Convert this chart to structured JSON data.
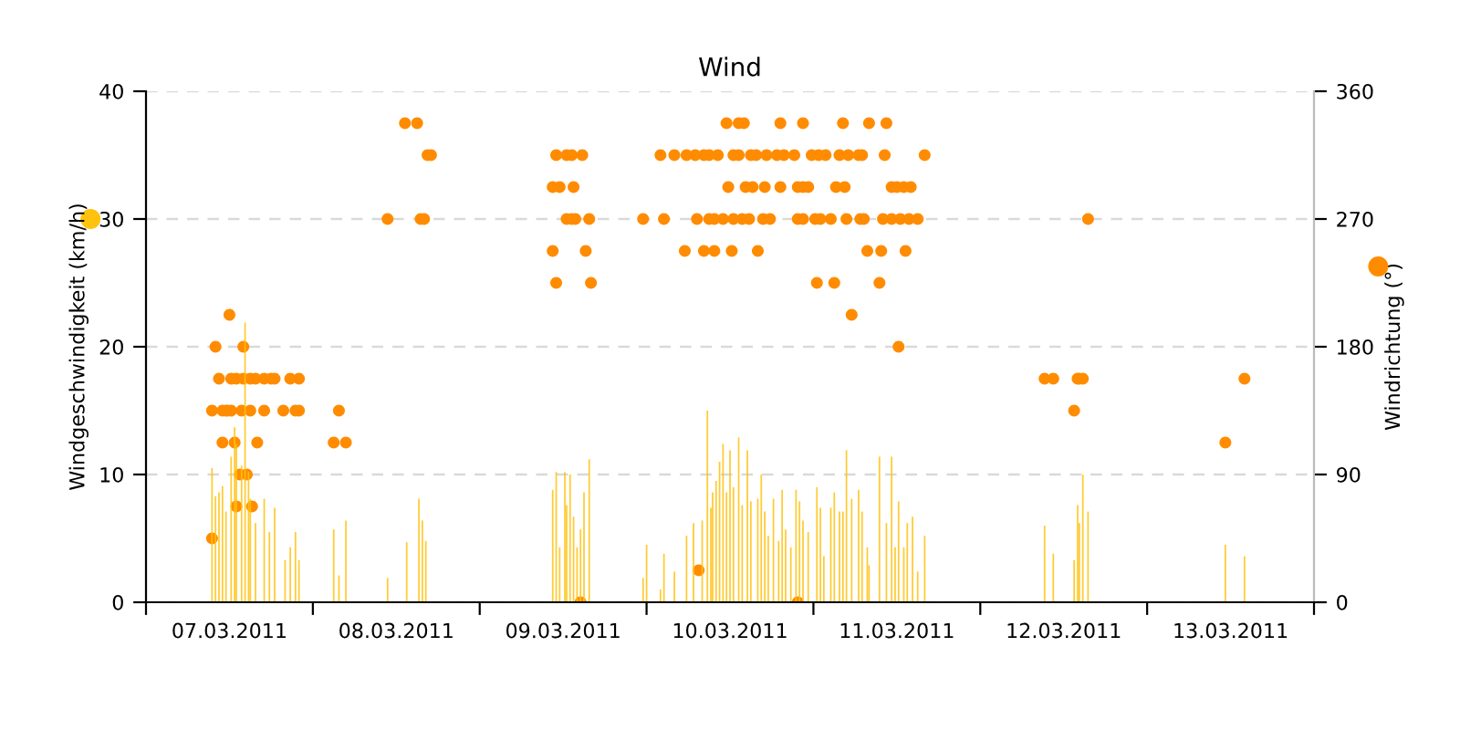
{
  "chart_data": {
    "type": "bar",
    "title": "Wind",
    "ylabel": "Windgeschwindigkeit (km/h)",
    "y2label": "Windrichtung (°)",
    "xlim": [
      "2011-03-07T00:00",
      "2011-03-14T00:00"
    ],
    "xticks": [
      {
        "value": "2011-03-07T00:00",
        "label": null
      },
      {
        "value": "2011-03-07T12:00",
        "label": "07.03.2011"
      },
      {
        "value": "2011-03-08T00:00",
        "label": null
      },
      {
        "value": "2011-03-08T12:00",
        "label": "08.03.2011"
      },
      {
        "value": "2011-03-09T00:00",
        "label": null
      },
      {
        "value": "2011-03-09T12:00",
        "label": "09.03.2011"
      },
      {
        "value": "2011-03-10T00:00",
        "label": null
      },
      {
        "value": "2011-03-10T12:00",
        "label": "10.03.2011"
      },
      {
        "value": "2011-03-11T00:00",
        "label": null
      },
      {
        "value": "2011-03-11T12:00",
        "label": "11.03.2011"
      },
      {
        "value": "2011-03-12T00:00",
        "label": null
      },
      {
        "value": "2011-03-12T12:00",
        "label": "12.03.2011"
      },
      {
        "value": "2011-03-13T00:00",
        "label": null
      },
      {
        "value": "2011-03-13T12:00",
        "label": "13.03.2011"
      },
      {
        "value": "2011-03-14T00:00",
        "label": null
      }
    ],
    "ylim": [
      0,
      40
    ],
    "yticks": [
      0,
      10,
      20,
      30,
      40
    ],
    "y2lim": [
      0,
      360
    ],
    "y2ticks": [
      0,
      90,
      180,
      270,
      360
    ],
    "grid": "y",
    "legend": false,
    "series": [
      {
        "color": "#ffc20e",
        "x": [
          "2011-03-07T09:30",
          "2011-03-07T10:00",
          "2011-03-07T10:30",
          "2011-03-07T11:00",
          "2011-03-07T11:30",
          "2011-03-07T12:15",
          "2011-03-07T12:45",
          "2011-03-07T13:00",
          "2011-03-07T13:45",
          "2011-03-07T14:15",
          "2011-03-07T14:45",
          "2011-03-07T15:00",
          "2011-03-07T15:45",
          "2011-03-07T17:00",
          "2011-03-07T17:45",
          "2011-03-07T18:30",
          "2011-03-07T20:00",
          "2011-03-07T20:45",
          "2011-03-07T21:30",
          "2011-03-07T22:00",
          "2011-03-08T03:00",
          "2011-03-08T03:45",
          "2011-03-08T04:45",
          "2011-03-08T10:45",
          "2011-03-08T13:30",
          "2011-03-08T15:15",
          "2011-03-08T15:45",
          "2011-03-08T16:15",
          "2011-03-09T10:30",
          "2011-03-09T11:00",
          "2011-03-09T11:30",
          "2011-03-09T12:15",
          "2011-03-09T12:30",
          "2011-03-09T13:00",
          "2011-03-09T13:30",
          "2011-03-09T14:00",
          "2011-03-09T14:30",
          "2011-03-09T15:00",
          "2011-03-09T15:45",
          "2011-03-09T23:30",
          "2011-03-10T00:00",
          "2011-03-10T02:00",
          "2011-03-10T02:30",
          "2011-03-10T04:00",
          "2011-03-10T05:45",
          "2011-03-10T06:45",
          "2011-03-10T08:00",
          "2011-03-10T08:45",
          "2011-03-10T09:15",
          "2011-03-10T09:30",
          "2011-03-10T10:00",
          "2011-03-10T10:30",
          "2011-03-10T11:00",
          "2011-03-10T11:30",
          "2011-03-10T12:00",
          "2011-03-10T12:30",
          "2011-03-10T13:15",
          "2011-03-10T13:45",
          "2011-03-10T14:30",
          "2011-03-10T15:00",
          "2011-03-10T16:00",
          "2011-03-10T16:30",
          "2011-03-10T17:00",
          "2011-03-10T17:30",
          "2011-03-10T18:15",
          "2011-03-10T19:00",
          "2011-03-10T19:30",
          "2011-03-10T20:00",
          "2011-03-10T20:45",
          "2011-03-10T21:30",
          "2011-03-10T22:00",
          "2011-03-10T22:30",
          "2011-03-10T23:15",
          "2011-03-11T00:30",
          "2011-03-11T01:00",
          "2011-03-11T01:30",
          "2011-03-11T02:30",
          "2011-03-11T03:00",
          "2011-03-11T03:45",
          "2011-03-11T04:15",
          "2011-03-11T04:45",
          "2011-03-11T05:30",
          "2011-03-11T06:30",
          "2011-03-11T07:00",
          "2011-03-11T07:45",
          "2011-03-11T08:00",
          "2011-03-11T09:30",
          "2011-03-11T10:30",
          "2011-03-11T11:15",
          "2011-03-11T11:45",
          "2011-03-11T12:15",
          "2011-03-11T13:00",
          "2011-03-11T13:30",
          "2011-03-11T14:15",
          "2011-03-11T15:00",
          "2011-03-11T16:00",
          "2011-03-12T09:15",
          "2011-03-12T10:30",
          "2011-03-12T13:30",
          "2011-03-12T14:00",
          "2011-03-12T14:15",
          "2011-03-12T14:45",
          "2011-03-12T15:30",
          "2011-03-13T11:15",
          "2011-03-13T14:00"
        ],
        "values": [
          10.5,
          8.3,
          8.6,
          9.1,
          7.1,
          11.4,
          13.7,
          12.4,
          10.7,
          21.9,
          10.2,
          8.1,
          6.2,
          8.1,
          5.5,
          7.4,
          3.3,
          4.3,
          5.5,
          3.3,
          5.7,
          2.1,
          6.4,
          1.9,
          4.7,
          8.1,
          6.4,
          4.8,
          8.8,
          10.2,
          4.3,
          10.2,
          7.6,
          10,
          6.7,
          4.3,
          5.7,
          8.6,
          11.2,
          1.9,
          4.5,
          1,
          3.8,
          2.4,
          5.2,
          6.2,
          6.4,
          15,
          7.4,
          8.6,
          9.5,
          11,
          12.4,
          8.6,
          11.9,
          9,
          12.9,
          7.6,
          11.9,
          7.9,
          8.1,
          10,
          7.1,
          5.2,
          8.1,
          4.8,
          8.8,
          5.7,
          4.3,
          8.8,
          7.9,
          6.4,
          5.5,
          9,
          7.4,
          3.6,
          7.4,
          8.6,
          7.1,
          7.1,
          11.9,
          8.1,
          8.8,
          7.1,
          4.3,
          2.9,
          11.4,
          6.2,
          11.4,
          4.3,
          7.9,
          4.3,
          6.2,
          6.7,
          2.4,
          5.2,
          6,
          3.8,
          3.3,
          7.6,
          6.2,
          10,
          7.1,
          4.5,
          3.6
        ]
      },
      {
        "type": "scatter",
        "axis": "y2",
        "color": "#ff8c00",
        "marker": "circle",
        "x": [
          "2011-03-07T12:00",
          "2011-03-07T10:00",
          "2011-03-07T14:00",
          "2011-03-07T10:30",
          "2011-03-07T12:15",
          "2011-03-07T13:00",
          "2011-03-07T14:00",
          "2011-03-07T15:00",
          "2011-03-07T15:45",
          "2011-03-07T17:00",
          "2011-03-07T18:00",
          "2011-03-07T18:30",
          "2011-03-07T20:45",
          "2011-03-07T22:00",
          "2011-03-07T09:30",
          "2011-03-07T11:00",
          "2011-03-07T11:30",
          "2011-03-07T11:45",
          "2011-03-07T12:15",
          "2011-03-07T13:45",
          "2011-03-07T15:00",
          "2011-03-07T17:00",
          "2011-03-07T19:45",
          "2011-03-07T21:30",
          "2011-03-07T22:00",
          "2011-03-08T03:45",
          "2011-03-07T11:00",
          "2011-03-07T12:45",
          "2011-03-07T16:00",
          "2011-03-08T03:00",
          "2011-03-08T04:45",
          "2011-03-07T13:30",
          "2011-03-07T14:30",
          "2011-03-07T13:00",
          "2011-03-07T15:15",
          "2011-03-07T09:30",
          "2011-03-08T10:45",
          "2011-03-08T15:30",
          "2011-03-08T16:00",
          "2011-03-08T13:15",
          "2011-03-08T15:00",
          "2011-03-08T16:30",
          "2011-03-08T17:00",
          "2011-03-10T11:30",
          "2011-03-10T13:15",
          "2011-03-10T14:00",
          "2011-03-10T19:15",
          "2011-03-10T22:30",
          "2011-03-11T04:15",
          "2011-03-11T08:00",
          "2011-03-11T10:30",
          "2011-03-09T11:00",
          "2011-03-09T12:30",
          "2011-03-09T13:15",
          "2011-03-09T14:45",
          "2011-03-10T02:00",
          "2011-03-10T04:00",
          "2011-03-10T05:45",
          "2011-03-10T07:00",
          "2011-03-10T08:15",
          "2011-03-10T09:00",
          "2011-03-10T10:15",
          "2011-03-10T12:30",
          "2011-03-10T13:15",
          "2011-03-10T15:00",
          "2011-03-10T15:45",
          "2011-03-10T17:15",
          "2011-03-10T18:45",
          "2011-03-10T19:45",
          "2011-03-10T21:15",
          "2011-03-10T23:45",
          "2011-03-11T00:45",
          "2011-03-11T01:45",
          "2011-03-11T03:45",
          "2011-03-11T05:00",
          "2011-03-11T06:30",
          "2011-03-11T07:00",
          "2011-03-11T10:15",
          "2011-03-11T16:00",
          "2011-03-09T10:30",
          "2011-03-09T11:30",
          "2011-03-09T13:30",
          "2011-03-10T11:45",
          "2011-03-10T14:15",
          "2011-03-10T15:15",
          "2011-03-10T17:00",
          "2011-03-10T19:15",
          "2011-03-10T21:45",
          "2011-03-10T22:30",
          "2011-03-10T23:15",
          "2011-03-11T03:15",
          "2011-03-11T04:30",
          "2011-03-11T11:15",
          "2011-03-11T12:00",
          "2011-03-11T13:00",
          "2011-03-11T14:00",
          "2011-03-09T12:30",
          "2011-03-09T13:15",
          "2011-03-09T13:45",
          "2011-03-09T15:45",
          "2011-03-09T23:30",
          "2011-03-10T02:30",
          "2011-03-10T07:15",
          "2011-03-10T09:00",
          "2011-03-10T09:45",
          "2011-03-10T11:00",
          "2011-03-10T12:30",
          "2011-03-10T13:45",
          "2011-03-10T14:45",
          "2011-03-10T16:45",
          "2011-03-10T17:45",
          "2011-03-10T21:45",
          "2011-03-10T22:30",
          "2011-03-11T00:15",
          "2011-03-11T01:00",
          "2011-03-11T02:30",
          "2011-03-11T04:45",
          "2011-03-11T06:45",
          "2011-03-11T07:15",
          "2011-03-11T10:00",
          "2011-03-11T11:15",
          "2011-03-11T12:30",
          "2011-03-11T13:45",
          "2011-03-11T15:00",
          "2011-03-12T15:30",
          "2011-03-09T10:30",
          "2011-03-09T15:15",
          "2011-03-10T05:30",
          "2011-03-10T08:15",
          "2011-03-10T09:45",
          "2011-03-10T12:15",
          "2011-03-10T16:00",
          "2011-03-11T07:45",
          "2011-03-11T09:45",
          "2011-03-11T13:15",
          "2011-03-09T11:00",
          "2011-03-09T16:00",
          "2011-03-11T00:30",
          "2011-03-11T03:00",
          "2011-03-11T09:30",
          "2011-03-11T05:30",
          "2011-03-11T12:15",
          "2011-03-12T09:15",
          "2011-03-12T10:30",
          "2011-03-12T14:00",
          "2011-03-12T14:15",
          "2011-03-12T14:45",
          "2011-03-13T14:00",
          "2011-03-12T13:30",
          "2011-03-13T11:15",
          "2011-03-09T14:30",
          "2011-03-10T21:45",
          "2011-03-10T07:30"
        ],
        "values": [
          202.5,
          180,
          180,
          157.5,
          157.5,
          157.5,
          157.5,
          157.5,
          157.5,
          157.5,
          157.5,
          157.5,
          157.5,
          157.5,
          135,
          135,
          135,
          135,
          135,
          135,
          135,
          135,
          135,
          135,
          135,
          135,
          112.5,
          112.5,
          112.5,
          112.5,
          112.5,
          90,
          90,
          67.5,
          67.5,
          45,
          270,
          270,
          270,
          337.5,
          337.5,
          315,
          315,
          337.5,
          337.5,
          337.5,
          337.5,
          337.5,
          337.5,
          337.5,
          337.5,
          315,
          315,
          315,
          315,
          315,
          315,
          315,
          315,
          315,
          315,
          315,
          315,
          315,
          315,
          315,
          315,
          315,
          315,
          315,
          315,
          315,
          315,
          315,
          315,
          315,
          315,
          315,
          315,
          292.5,
          292.5,
          292.5,
          292.5,
          292.5,
          292.5,
          292.5,
          292.5,
          292.5,
          292.5,
          292.5,
          292.5,
          292.5,
          292.5,
          292.5,
          292.5,
          292.5,
          270,
          270,
          270,
          270,
          270,
          270,
          270,
          270,
          270,
          270,
          270,
          270,
          270,
          270,
          270,
          270,
          270,
          270,
          270,
          270,
          270,
          270,
          270,
          270,
          270,
          270,
          270,
          270,
          270,
          247.5,
          247.5,
          247.5,
          247.5,
          247.5,
          247.5,
          247.5,
          247.5,
          247.5,
          247.5,
          225,
          225,
          225,
          225,
          225,
          202.5,
          180,
          157.5,
          157.5,
          157.5,
          157.5,
          157.5,
          157.5,
          135,
          112.5,
          0,
          0,
          22.5
        ]
      }
    ]
  }
}
